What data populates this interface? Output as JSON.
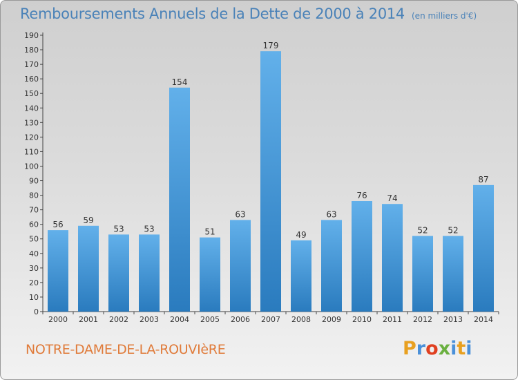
{
  "header": {
    "title": "Remboursements Annuels de la Dette de 2000 à 2014",
    "subtitle": "(en milliers d'€)"
  },
  "footer": {
    "location": "NOTRE-DAME-DE-LA-ROUVIèRE",
    "brand": "Proxiti",
    "brand_colors": [
      "#e8a020",
      "#4a90d9",
      "#e04020",
      "#6ab040",
      "#4a90d9",
      "#e8a020",
      "#4a90d9"
    ]
  },
  "colors": {
    "bar_top": "#62b0ea",
    "bar_bottom": "#2a7bbe",
    "axis_text": "#333333",
    "title": "#4a82b8",
    "location": "#e07b3a"
  },
  "chart_data": {
    "type": "bar",
    "categories": [
      "2000",
      "2001",
      "2002",
      "2003",
      "2004",
      "2005",
      "2006",
      "2007",
      "2008",
      "2009",
      "2010",
      "2011",
      "2012",
      "2013",
      "2014"
    ],
    "values": [
      56,
      59,
      53,
      53,
      154,
      51,
      63,
      179,
      49,
      63,
      76,
      74,
      52,
      52,
      87
    ],
    "title": "Remboursements Annuels de la Dette de 2000 à 2014",
    "ylim": [
      0,
      190
    ],
    "ytick_step": 10,
    "grid": false,
    "data_labels": true
  }
}
